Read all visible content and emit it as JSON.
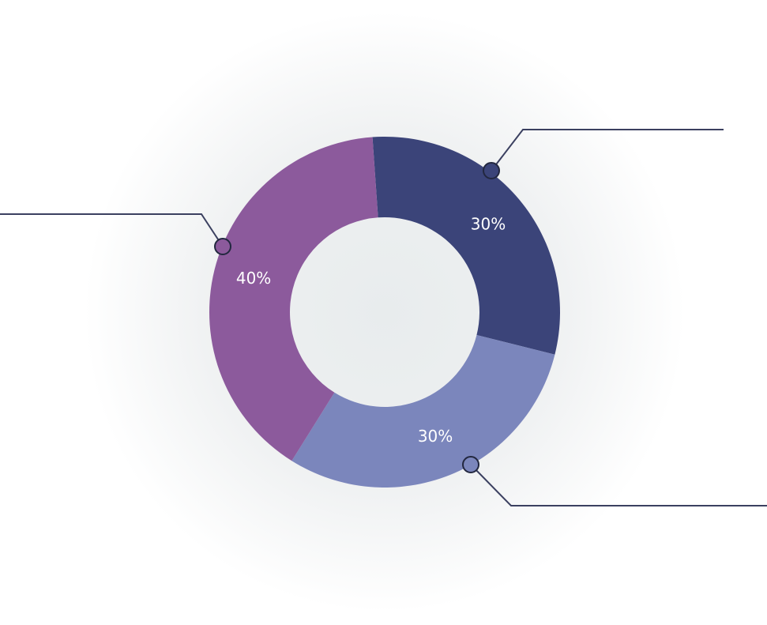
{
  "chart_data": {
    "type": "pie",
    "values": [
      30,
      30,
      40
    ],
    "value_labels": [
      "30%",
      "30%",
      "40%"
    ],
    "colors": [
      "#3b4479",
      "#7b86bc",
      "#8c5a9c"
    ]
  }
}
